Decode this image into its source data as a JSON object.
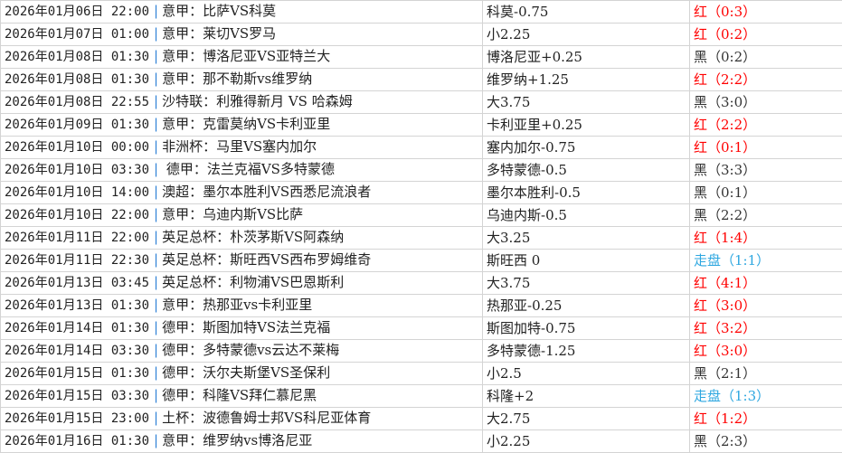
{
  "colors": {
    "红": "#ff0000",
    "黑": "#333333",
    "走盘": "#2ea7e0"
  },
  "rows": [
    {
      "datetime": "2026年01月06日 22:00",
      "match": "意甲：比萨VS科莫",
      "handicap": "科莫-0.75",
      "result": "红（0:3）",
      "status": "红"
    },
    {
      "datetime": "2026年01月07日 01:00",
      "match": "意甲：莱切VS罗马",
      "handicap": "小2.25",
      "result": "红（0:2）",
      "status": "红"
    },
    {
      "datetime": "2026年01月08日 01:30",
      "match": "意甲：博洛尼亚VS亚特兰大",
      "handicap": "博洛尼亚+0.25",
      "result": "黑（0:2）",
      "status": "黑"
    },
    {
      "datetime": "2026年01月08日 01:30",
      "match": "意甲：那不勒斯vs维罗纳",
      "handicap": "维罗纳+1.25",
      "result": "红（2:2）",
      "status": "红"
    },
    {
      "datetime": "2026年01月08日 22:55",
      "match": "沙特联：利雅得新月 VS 哈森姆",
      "handicap": "大3.75",
      "result": "黑（3:0）",
      "status": "黑"
    },
    {
      "datetime": "2026年01月09日 01:30",
      "match": "意甲：克雷莫纳VS卡利亚里",
      "handicap": "卡利亚里+0.25",
      "result": "红（2:2）",
      "status": "红"
    },
    {
      "datetime": "2026年01月10日 00:00",
      "match": "非洲杯：马里VS塞内加尔",
      "handicap": "塞内加尔-0.75",
      "result": "红（0:1）",
      "status": "红"
    },
    {
      "datetime": "2026年01月10日 03:30",
      "match": " 德甲：法兰克福VS多特蒙德",
      "handicap": "多特蒙德-0.5",
      "result": "黑（3:3）",
      "status": "黑"
    },
    {
      "datetime": "2026年01月10日 14:00",
      "match": "澳超：墨尔本胜利VS西悉尼流浪者",
      "handicap": "墨尔本胜利-0.5",
      "result": "黑（0:1）",
      "status": "黑"
    },
    {
      "datetime": "2026年01月10日 22:00",
      "match": "意甲：乌迪内斯VS比萨",
      "handicap": "乌迪内斯-0.5",
      "result": "黑（2:2）",
      "status": "黑"
    },
    {
      "datetime": "2026年01月11日 22:00",
      "match": "英足总杯：朴茨茅斯VS阿森纳",
      "handicap": "大3.25",
      "result": "红（1:4）",
      "status": "红"
    },
    {
      "datetime": "2026年01月11日 22:30",
      "match": "英足总杯：斯旺西VS西布罗姆维奇",
      "handicap": "斯旺西 0",
      "result": "走盘（1:1）",
      "status": "走盘"
    },
    {
      "datetime": "2026年01月13日 03:45",
      "match": "英足总杯：利物浦VS巴恩斯利",
      "handicap": "大3.75",
      "result": "红（4:1）",
      "status": "红"
    },
    {
      "datetime": "2026年01月13日 01:30",
      "match": "意甲：热那亚vs卡利亚里",
      "handicap": "热那亚-0.25",
      "result": "红（3:0）",
      "status": "红"
    },
    {
      "datetime": "2026年01月14日 01:30",
      "match": "德甲：斯图加特VS法兰克福",
      "handicap": "斯图加特-0.75",
      "result": "红（3:2）",
      "status": "红"
    },
    {
      "datetime": "2026年01月14日 03:30",
      "match": "德甲：多特蒙德vs云达不莱梅",
      "handicap": "多特蒙德-1.25",
      "result": "红（3:0）",
      "status": "红"
    },
    {
      "datetime": "2026年01月15日 01:30",
      "match": "德甲：沃尔夫斯堡VS圣保利",
      "handicap": "小2.5",
      "result": "黑（2:1）",
      "status": "黑"
    },
    {
      "datetime": "2026年01月15日 03:30",
      "match": "德甲：科隆VS拜仁慕尼黑",
      "handicap": "科隆+2",
      "result": "走盘（1:3）",
      "status": "走盘"
    },
    {
      "datetime": "2026年01月15日 23:00",
      "match": "土杯：波德鲁姆士邦VS科尼亚体育",
      "handicap": "大2.75",
      "result": "红（1:2）",
      "status": "红"
    },
    {
      "datetime": "2026年01月16日 01:30",
      "match": "意甲：维罗纳vs博洛尼亚",
      "handicap": "小2.25",
      "result": "黑（2:3）",
      "status": "黑"
    }
  ]
}
